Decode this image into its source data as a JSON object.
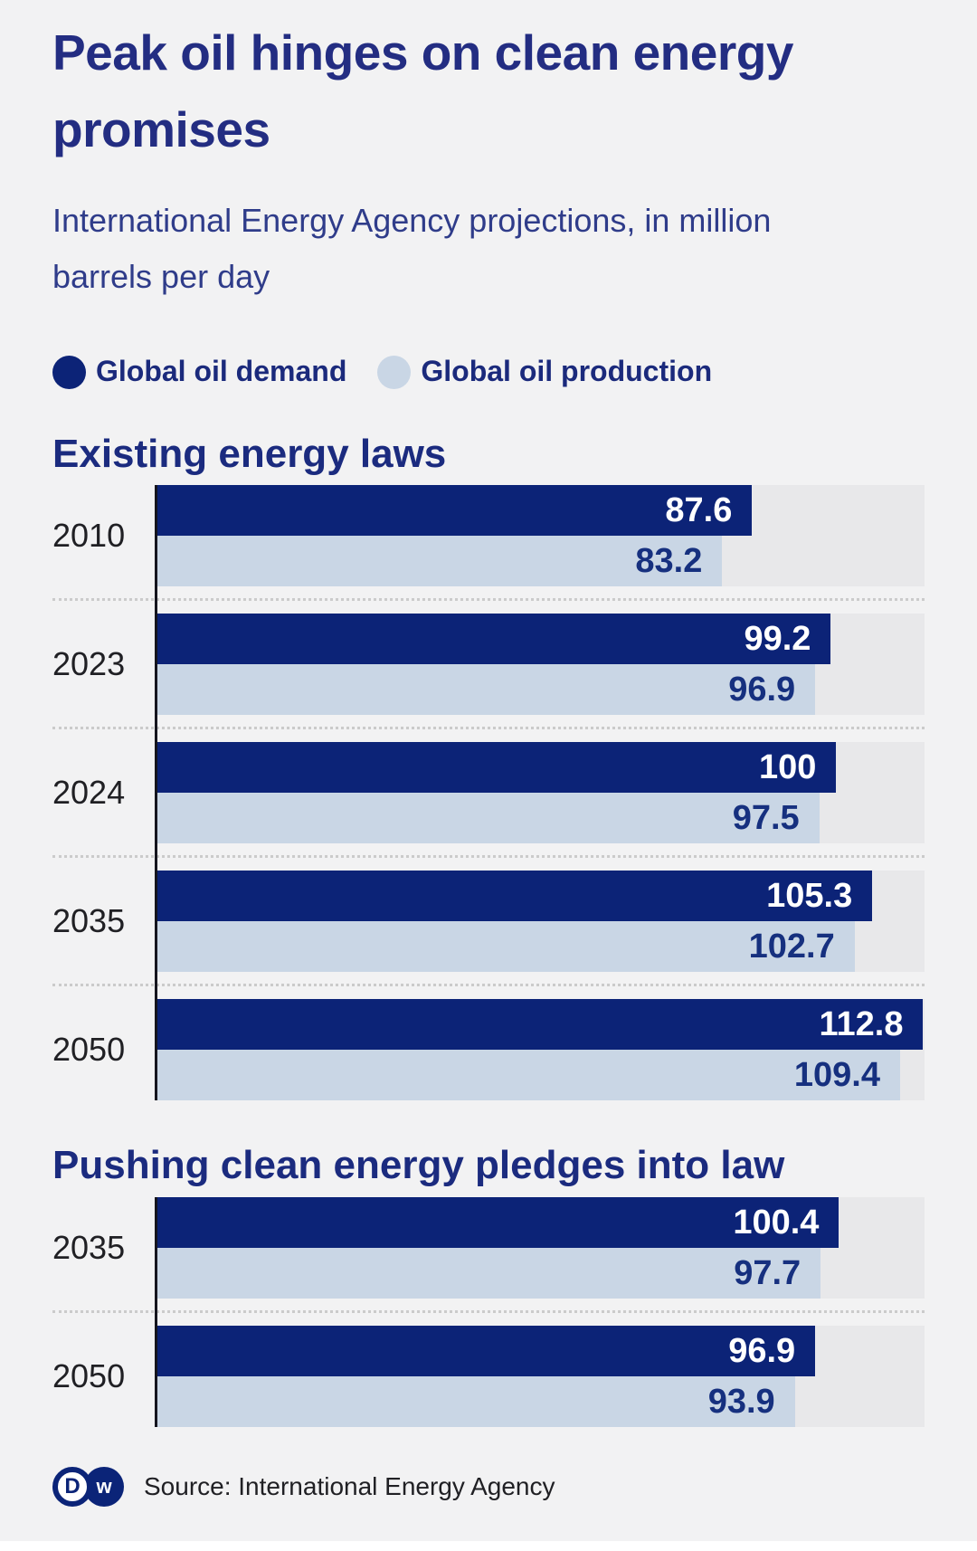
{
  "title": "Peak oil hinges on clean energy promises",
  "subtitle": "International Energy Agency projections, in million barrels per day",
  "legend": [
    {
      "label": "Global oil demand",
      "color": "#0c2377"
    },
    {
      "label": "Global oil production",
      "color": "#c9d6e5"
    }
  ],
  "chart_data": [
    {
      "type": "bar",
      "orientation": "horizontal",
      "title": "Existing energy laws",
      "categories": [
        "2010",
        "2023",
        "2024",
        "2035",
        "2050"
      ],
      "series": [
        {
          "name": "Global oil demand",
          "color": "#0c2377",
          "values": [
            87.6,
            99.2,
            100,
            105.3,
            112.8
          ]
        },
        {
          "name": "Global oil production",
          "color": "#c9d6e5",
          "values": [
            83.2,
            96.9,
            97.5,
            102.7,
            109.4
          ]
        }
      ],
      "xlim": [
        0,
        113
      ],
      "grid": false,
      "value_labels": "inside-end"
    },
    {
      "type": "bar",
      "orientation": "horizontal",
      "title": "Pushing clean energy pledges into law",
      "categories": [
        "2035",
        "2050"
      ],
      "series": [
        {
          "name": "Global oil demand",
          "color": "#0c2377",
          "values": [
            100.4,
            96.9
          ]
        },
        {
          "name": "Global oil production",
          "color": "#c9d6e5",
          "values": [
            97.7,
            93.9
          ]
        }
      ],
      "xlim": [
        0,
        113
      ],
      "grid": false,
      "value_labels": "inside-end"
    }
  ],
  "footer": {
    "logo_d": "D",
    "logo_w": "w",
    "source": "Source: International Energy Agency"
  },
  "colors": {
    "background": "#f2f2f3",
    "bar_track": "#e8e8ea",
    "bar_demand": "#0c2377",
    "bar_production": "#c9d6e5",
    "title_text": "#232d82",
    "subtitle_text": "#2f3c8a",
    "section_title_text": "#1b2b7f",
    "year_label_text": "#202024",
    "value_on_demand": "#ffffff",
    "value_on_production": "#16307f",
    "axis_line": "#15151e",
    "separator_dots": "#cbcbcb",
    "source_text": "#202024",
    "dw_logo": "#0b2478"
  }
}
